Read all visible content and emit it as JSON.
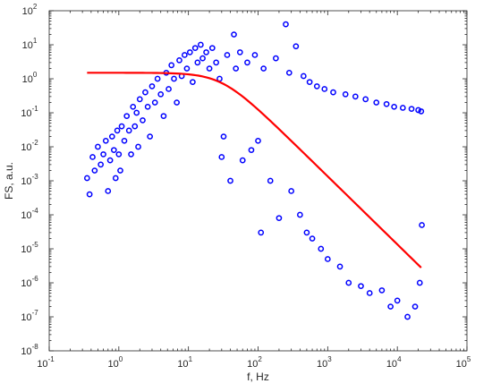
{
  "chart_data": {
    "type": "scatter",
    "title": "",
    "xlabel": "f, Hz",
    "ylabel": "FS, a.u.",
    "xscale": "log",
    "yscale": "log",
    "xlim": [
      0.1,
      100000
    ],
    "ylim": [
      1e-08,
      100
    ],
    "grid": false,
    "legend": "none",
    "x_ticks": [
      {
        "value": 0.1,
        "base": "10",
        "exp": "-1"
      },
      {
        "value": 1,
        "base": "10",
        "exp": "0"
      },
      {
        "value": 10,
        "base": "10",
        "exp": "1"
      },
      {
        "value": 100,
        "base": "10",
        "exp": "2"
      },
      {
        "value": 1000,
        "base": "10",
        "exp": "3"
      },
      {
        "value": 10000,
        "base": "10",
        "exp": "4"
      },
      {
        "value": 100000,
        "base": "10",
        "exp": "5"
      }
    ],
    "y_ticks": [
      {
        "value": 1e-08,
        "base": "10",
        "exp": "-8"
      },
      {
        "value": 1e-07,
        "base": "10",
        "exp": "-7"
      },
      {
        "value": 1e-06,
        "base": "10",
        "exp": "-6"
      },
      {
        "value": 1e-05,
        "base": "10",
        "exp": "-5"
      },
      {
        "value": 0.0001,
        "base": "10",
        "exp": "-4"
      },
      {
        "value": 0.001,
        "base": "10",
        "exp": "-3"
      },
      {
        "value": 0.01,
        "base": "10",
        "exp": "-2"
      },
      {
        "value": 0.1,
        "base": "10",
        "exp": "-1"
      },
      {
        "value": 1,
        "base": "10",
        "exp": "0"
      },
      {
        "value": 10,
        "base": "10",
        "exp": "1"
      },
      {
        "value": 100,
        "base": "10",
        "exp": "2"
      }
    ],
    "series": [
      {
        "type": "scatter",
        "marker": "circle-open",
        "color": "#0000ff",
        "points": [
          [
            0.35,
            0.0012
          ],
          [
            0.38,
            0.0004
          ],
          [
            0.42,
            0.005
          ],
          [
            0.45,
            0.002
          ],
          [
            0.5,
            0.01
          ],
          [
            0.55,
            0.003
          ],
          [
            0.6,
            0.006
          ],
          [
            0.65,
            0.015
          ],
          [
            0.7,
            0.0005
          ],
          [
            0.75,
            0.004
          ],
          [
            0.8,
            0.02
          ],
          [
            0.85,
            0.008
          ],
          [
            0.9,
            0.0012
          ],
          [
            0.95,
            0.03
          ],
          [
            1.0,
            0.006
          ],
          [
            1.05,
            0.002
          ],
          [
            1.1,
            0.04
          ],
          [
            1.2,
            0.015
          ],
          [
            1.3,
            0.08
          ],
          [
            1.4,
            0.03
          ],
          [
            1.5,
            0.006
          ],
          [
            1.6,
            0.15
          ],
          [
            1.7,
            0.04
          ],
          [
            1.8,
            0.1
          ],
          [
            1.9,
            0.01
          ],
          [
            2.0,
            0.25
          ],
          [
            2.2,
            0.06
          ],
          [
            2.4,
            0.4
          ],
          [
            2.6,
            0.15
          ],
          [
            2.8,
            0.02
          ],
          [
            3.0,
            0.6
          ],
          [
            3.3,
            0.2
          ],
          [
            3.6,
            1.0
          ],
          [
            4.0,
            0.35
          ],
          [
            4.4,
            0.08
          ],
          [
            4.8,
            1.5
          ],
          [
            5.2,
            0.5
          ],
          [
            5.7,
            2.5
          ],
          [
            6.2,
            1.0
          ],
          [
            6.8,
            0.2
          ],
          [
            7.4,
            3.5
          ],
          [
            8.0,
            1.2
          ],
          [
            8.8,
            5.0
          ],
          [
            9.5,
            2.0
          ],
          [
            10.5,
            6.0
          ],
          [
            11.5,
            0.8
          ],
          [
            12.5,
            8.0
          ],
          [
            13.5,
            3.0
          ],
          [
            15,
            10.0
          ],
          [
            16,
            4.0
          ],
          [
            18,
            6.0
          ],
          [
            20,
            2.0
          ],
          [
            22,
            8.0
          ],
          [
            25,
            3.0
          ],
          [
            28,
            1.0
          ],
          [
            30,
            0.005
          ],
          [
            32,
            0.02
          ],
          [
            36,
            5.0
          ],
          [
            40,
            0.001
          ],
          [
            45,
            20.0
          ],
          [
            48,
            2.0
          ],
          [
            55,
            6.0
          ],
          [
            60,
            0.004
          ],
          [
            70,
            3.0
          ],
          [
            80,
            0.008
          ],
          [
            90,
            5.0
          ],
          [
            100,
            0.015
          ],
          [
            110,
            3e-05
          ],
          [
            120,
            2.0
          ],
          [
            150,
            0.001
          ],
          [
            180,
            4.0
          ],
          [
            200,
            8e-05
          ],
          [
            250,
            40.0
          ],
          [
            280,
            1.5
          ],
          [
            300,
            0.0005
          ],
          [
            350,
            9.0
          ],
          [
            400,
            0.0001
          ],
          [
            450,
            1.2
          ],
          [
            500,
            3e-05
          ],
          [
            550,
            0.8
          ],
          [
            600,
            2e-05
          ],
          [
            700,
            0.6
          ],
          [
            800,
            1e-05
          ],
          [
            900,
            0.5
          ],
          [
            1000,
            5e-06
          ],
          [
            1200,
            0.4
          ],
          [
            1500,
            3e-06
          ],
          [
            1800,
            0.35
          ],
          [
            2000,
            1e-06
          ],
          [
            2500,
            0.3
          ],
          [
            3000,
            8e-07
          ],
          [
            3500,
            0.25
          ],
          [
            4000,
            5e-07
          ],
          [
            5000,
            0.2
          ],
          [
            6000,
            6e-07
          ],
          [
            7000,
            0.18
          ],
          [
            8000,
            2e-07
          ],
          [
            9000,
            0.15
          ],
          [
            10000,
            3e-07
          ],
          [
            12000,
            0.14
          ],
          [
            14000,
            1e-07
          ],
          [
            16000,
            0.13
          ],
          [
            18000,
            2e-07
          ],
          [
            20000,
            0.12
          ],
          [
            21000,
            1e-06
          ],
          [
            22000,
            0.11
          ],
          [
            22500,
            5e-05
          ]
        ]
      },
      {
        "type": "line",
        "color": "#ff0000",
        "model": "y = A / (1 + (x/fc)^2)",
        "A": 1.5,
        "fc": 30,
        "x_range": [
          0.35,
          22000
        ],
        "samples": 120
      }
    ]
  }
}
